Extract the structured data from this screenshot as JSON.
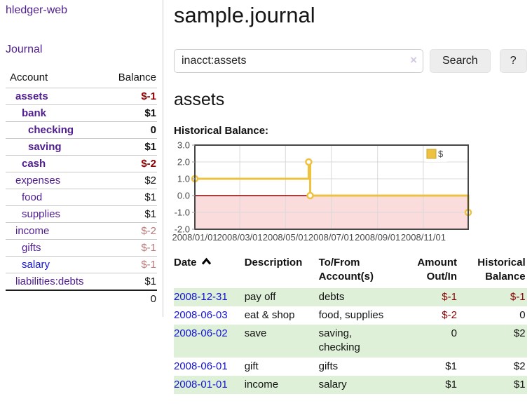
{
  "app": {
    "brand": "hledger-web",
    "nav_journal": "Journal"
  },
  "colors": {
    "accent_purple": "#4f1d8e",
    "link_blue": "#1414d6",
    "negative_strong": "#8b0000",
    "negative_muted": "#b87878",
    "row_shade_green": "#dff0d8",
    "series_gold": "#edc240",
    "negative_region_pink": "#fbdcdc",
    "zero_line_red": "#8f0000"
  },
  "sidebar": {
    "header": {
      "account": "Account",
      "balance": "Balance"
    },
    "accounts": [
      {
        "name": "assets",
        "indent": 0,
        "balance": "$-1",
        "bold": true,
        "balance_style": "neg-strong",
        "link_style": ""
      },
      {
        "name": "bank",
        "indent": 1,
        "balance": "$1",
        "bold": true,
        "balance_style": "",
        "link_style": ""
      },
      {
        "name": "checking",
        "indent": 2,
        "balance": "0",
        "bold": true,
        "balance_style": "",
        "link_style": ""
      },
      {
        "name": "saving",
        "indent": 2,
        "balance": "$1",
        "bold": true,
        "balance_style": "",
        "link_style": ""
      },
      {
        "name": "cash",
        "indent": 1,
        "balance": "$-2",
        "bold": true,
        "balance_style": "neg-strong",
        "link_style": ""
      },
      {
        "name": "expenses",
        "indent": 0,
        "balance": "$2",
        "bold": false,
        "balance_style": "",
        "link_style": ""
      },
      {
        "name": "food",
        "indent": 1,
        "balance": "$1",
        "bold": false,
        "balance_style": "",
        "link_style": ""
      },
      {
        "name": "supplies",
        "indent": 1,
        "balance": "$1",
        "bold": false,
        "balance_style": "",
        "link_style": ""
      },
      {
        "name": "income",
        "indent": 0,
        "balance": "$-2",
        "bold": false,
        "balance_style": "neg-muted",
        "link_style": ""
      },
      {
        "name": "gifts",
        "indent": 1,
        "balance": "$-1",
        "bold": false,
        "balance_style": "neg-muted",
        "link_style": ""
      },
      {
        "name": "salary",
        "indent": 1,
        "balance": "$-1",
        "bold": false,
        "balance_style": "neg-muted",
        "link_style": "blue"
      },
      {
        "name": "liabilities:debts",
        "indent": 0,
        "balance": "$1",
        "bold": false,
        "balance_style": "",
        "link_style": ""
      }
    ],
    "total": "0"
  },
  "header": {
    "title": "sample.journal"
  },
  "search": {
    "value": "inacct:assets",
    "clear_icon": "×",
    "button_label": "Search",
    "help_label": "?"
  },
  "main": {
    "account_title": "assets",
    "chart_label": "Historical Balance:"
  },
  "chart_data": {
    "type": "line",
    "title": "Historical Balance",
    "legend": "$",
    "legend_position": "top-right",
    "grid": true,
    "ylim": [
      -2,
      3
    ],
    "y_ticks": [
      "3.0",
      "2.0",
      "1.0",
      "0.0",
      "-1.0",
      "-2.0"
    ],
    "x_domain_days": [
      0,
      365
    ],
    "x_ticks": [
      {
        "label": "2008/01/01",
        "day": 0
      },
      {
        "label": "2008/03/01",
        "day": 60
      },
      {
        "label": "2008/05/01",
        "day": 121
      },
      {
        "label": "2008/07/01",
        "day": 182
      },
      {
        "label": "2008/09/01",
        "day": 244
      },
      {
        "label": "2008/11/01",
        "day": 305
      }
    ],
    "negative_region": true,
    "series": [
      {
        "name": "$",
        "color": "#edc240",
        "step": true,
        "points": [
          {
            "date": "2008-01-01",
            "day": 0,
            "value": 1
          },
          {
            "date": "2008-06-01",
            "day": 152,
            "value": 2
          },
          {
            "date": "2008-06-03",
            "day": 154,
            "value": 0
          },
          {
            "date": "2008-12-31",
            "day": 365,
            "value": -1
          }
        ]
      }
    ]
  },
  "register": {
    "columns": [
      {
        "line1": "Date",
        "line2": "",
        "align": "left",
        "sorted": true
      },
      {
        "line1": "Description",
        "line2": "",
        "align": "left",
        "sorted": false
      },
      {
        "line1": "To/From",
        "line2": "Account(s)",
        "align": "left",
        "sorted": false
      },
      {
        "line1": "Amount",
        "line2": "Out/In",
        "align": "right",
        "sorted": false
      },
      {
        "line1": "Historical",
        "line2": "Balance",
        "align": "right",
        "sorted": false
      }
    ],
    "rows": [
      {
        "date": "2008-12-31",
        "description": "pay off",
        "accounts": "debts",
        "amount": "$-1",
        "amount_negative": true,
        "balance": "$-1",
        "balance_negative": true,
        "shaded": true
      },
      {
        "date": "2008-06-03",
        "description": "eat & shop",
        "accounts": "food, supplies",
        "amount": "$-2",
        "amount_negative": true,
        "balance": "0",
        "balance_negative": false,
        "shaded": false
      },
      {
        "date": "2008-06-02",
        "description": "save",
        "accounts": "saving, checking",
        "amount": "0",
        "amount_negative": false,
        "balance": "$2",
        "balance_negative": false,
        "shaded": true
      },
      {
        "date": "2008-06-01",
        "description": "gift",
        "accounts": "gifts",
        "amount": "$1",
        "amount_negative": false,
        "balance": "$2",
        "balance_negative": false,
        "shaded": false
      },
      {
        "date": "2008-01-01",
        "description": "income",
        "accounts": "salary",
        "amount": "$1",
        "amount_negative": false,
        "balance": "$1",
        "balance_negative": false,
        "shaded": true
      }
    ]
  }
}
